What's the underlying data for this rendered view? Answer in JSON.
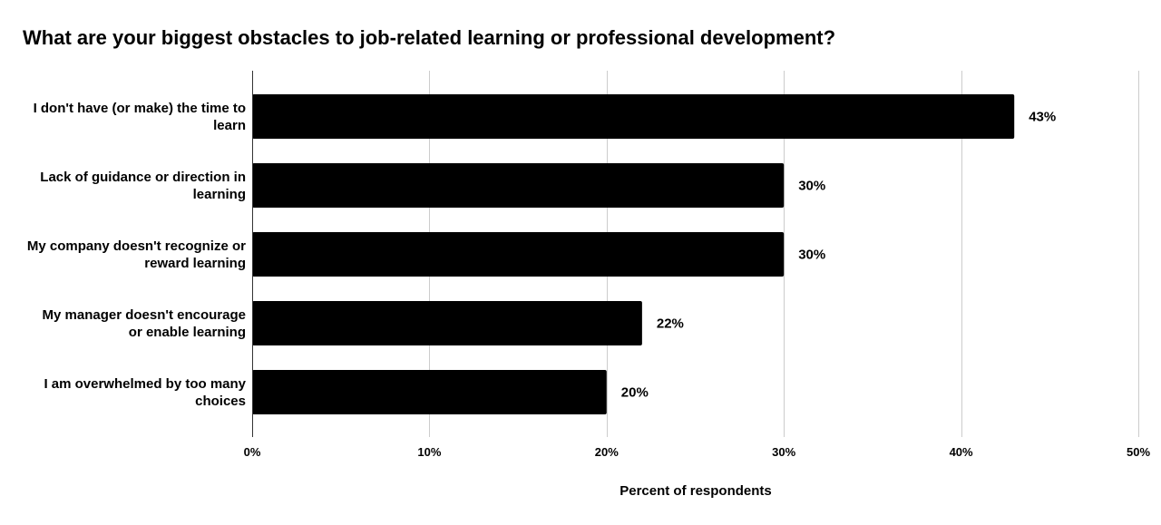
{
  "chart_data": {
    "type": "bar",
    "orientation": "horizontal",
    "title": "What are your biggest obstacles to job-related learning or professional development?",
    "xlabel": "Percent of respondents",
    "ylabel": "",
    "categories": [
      "I don't have (or make) the time to learn",
      "Lack of guidance or direction in learning",
      "My company doesn't recognize or reward learning",
      "My manager doesn't encourage or enable learning",
      "I am overwhelmed by too many choices"
    ],
    "category_lines": [
      [
        "I don't have (or make) the time to",
        "learn"
      ],
      [
        "Lack of guidance or direction in",
        "learning"
      ],
      [
        "My company doesn't recognize or",
        "reward learning"
      ],
      [
        "My manager doesn't encourage",
        "or enable learning"
      ],
      [
        "I am overwhelmed by too many",
        "choices"
      ]
    ],
    "values": [
      43,
      30,
      30,
      22,
      20
    ],
    "data_labels": [
      "43%",
      "30%",
      "30%",
      "22%",
      "20%"
    ],
    "xlim": [
      0,
      50
    ],
    "xticks": [
      0,
      10,
      20,
      30,
      40,
      50
    ],
    "xtick_labels": [
      "0%",
      "10%",
      "20%",
      "30%",
      "40%",
      "50%"
    ],
    "grid": true,
    "legend": "none",
    "bar_color": "#000000",
    "grid_color": "#cccccc"
  }
}
